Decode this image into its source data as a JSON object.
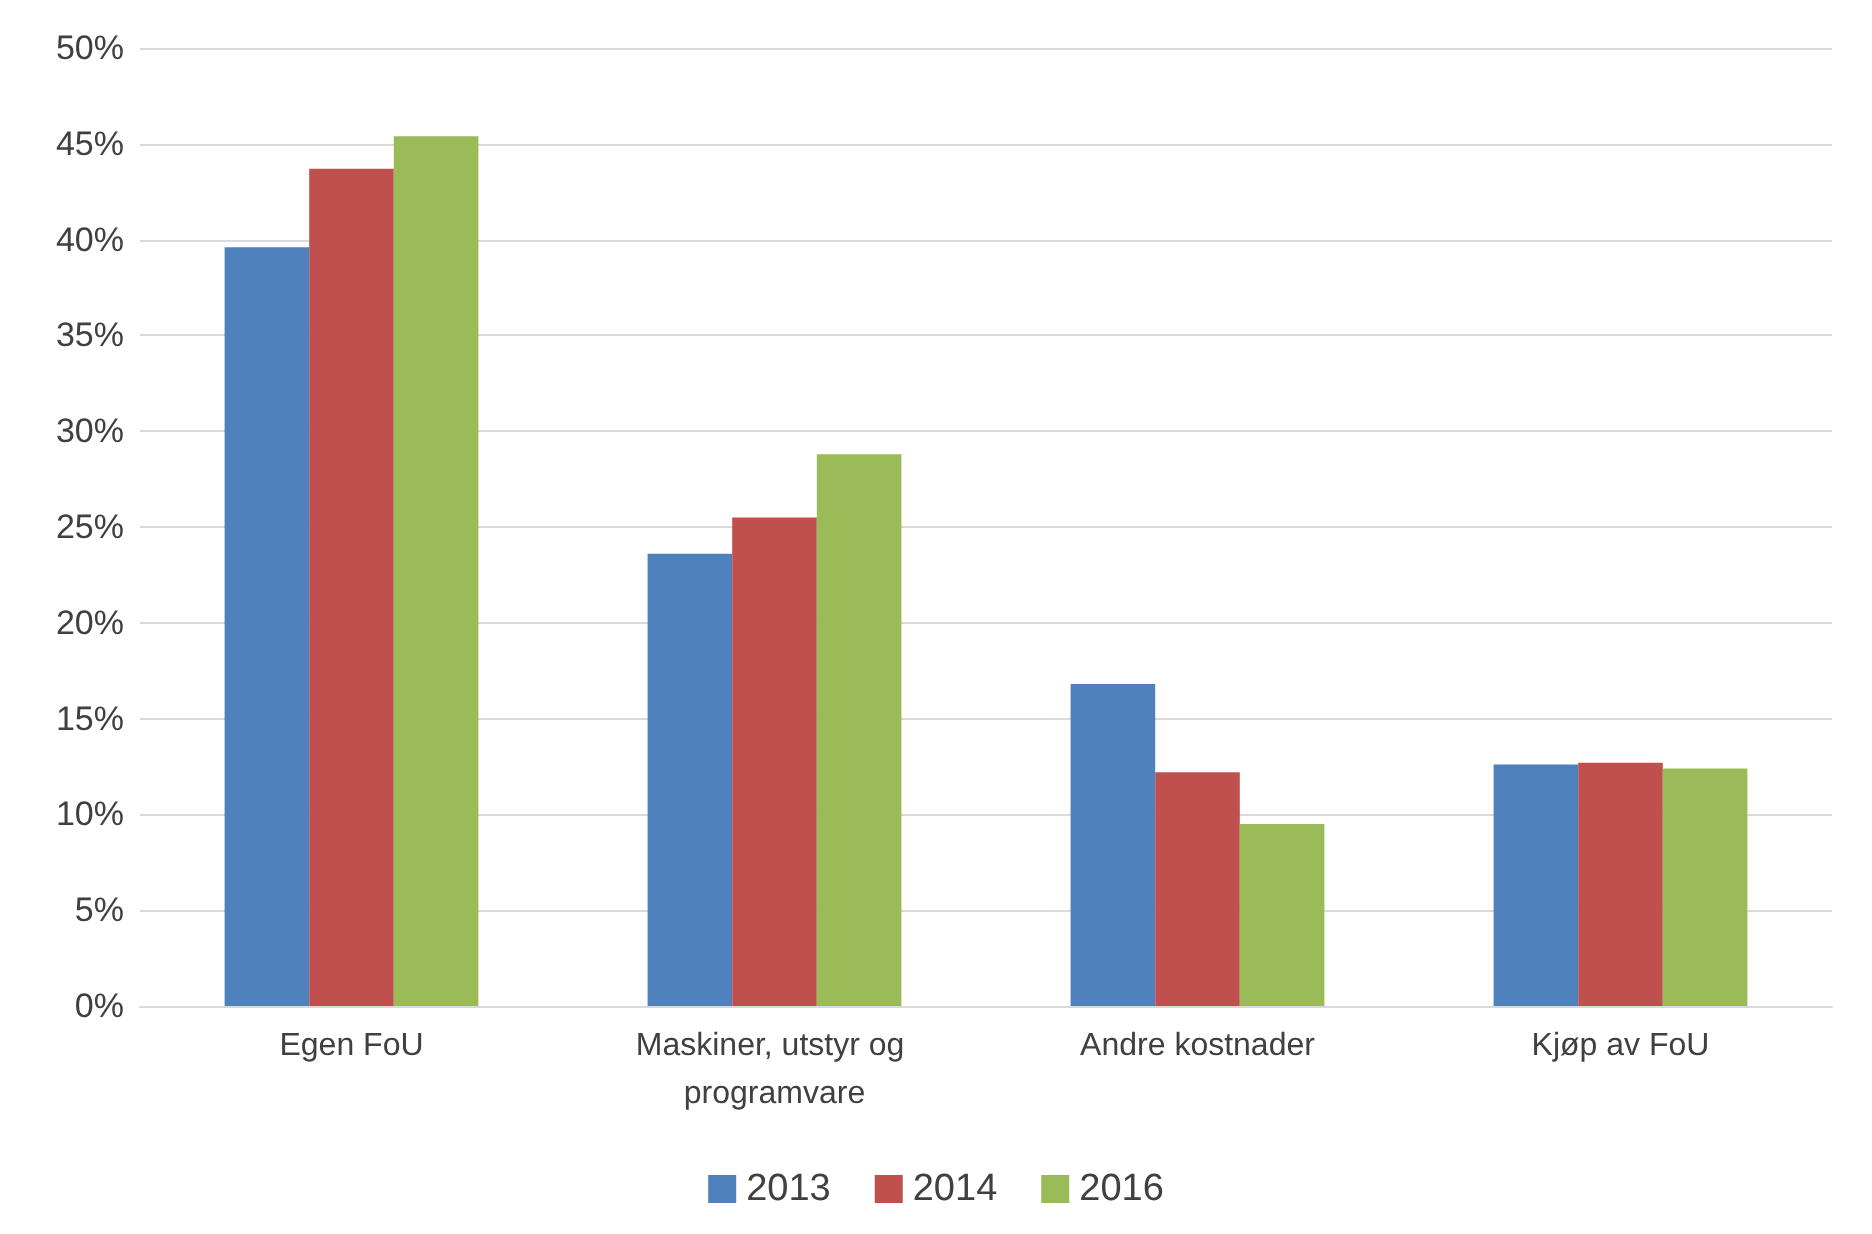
{
  "chart_data": {
    "type": "bar",
    "categories": [
      "Egen FoU",
      "Maskiner, utstyr og programvare",
      "Andre kostnader",
      "Kjøp av FoU"
    ],
    "series": [
      {
        "name": "2013",
        "color": "#4f81bd",
        "values": [
          39.6,
          23.6,
          16.8,
          12.6
        ]
      },
      {
        "name": "2014",
        "color": "#c0504d",
        "values": [
          43.7,
          25.5,
          12.2,
          12.7
        ]
      },
      {
        "name": "2016",
        "color": "#9bbb59",
        "values": [
          45.4,
          28.8,
          9.5,
          12.4
        ]
      }
    ],
    "ylim": [
      0,
      50
    ],
    "yticks": [
      {
        "value": 0,
        "label": "0%"
      },
      {
        "value": 5,
        "label": "5%"
      },
      {
        "value": 10,
        "label": "10%"
      },
      {
        "value": 15,
        "label": "15%"
      },
      {
        "value": 20,
        "label": "20%"
      },
      {
        "value": 25,
        "label": "25%"
      },
      {
        "value": 30,
        "label": "30%"
      },
      {
        "value": 35,
        "label": "35%"
      },
      {
        "value": 40,
        "label": "40%"
      },
      {
        "value": 45,
        "label": "45%"
      },
      {
        "value": 50,
        "label": "50%"
      }
    ],
    "grid": "y",
    "legend": "bottom"
  }
}
